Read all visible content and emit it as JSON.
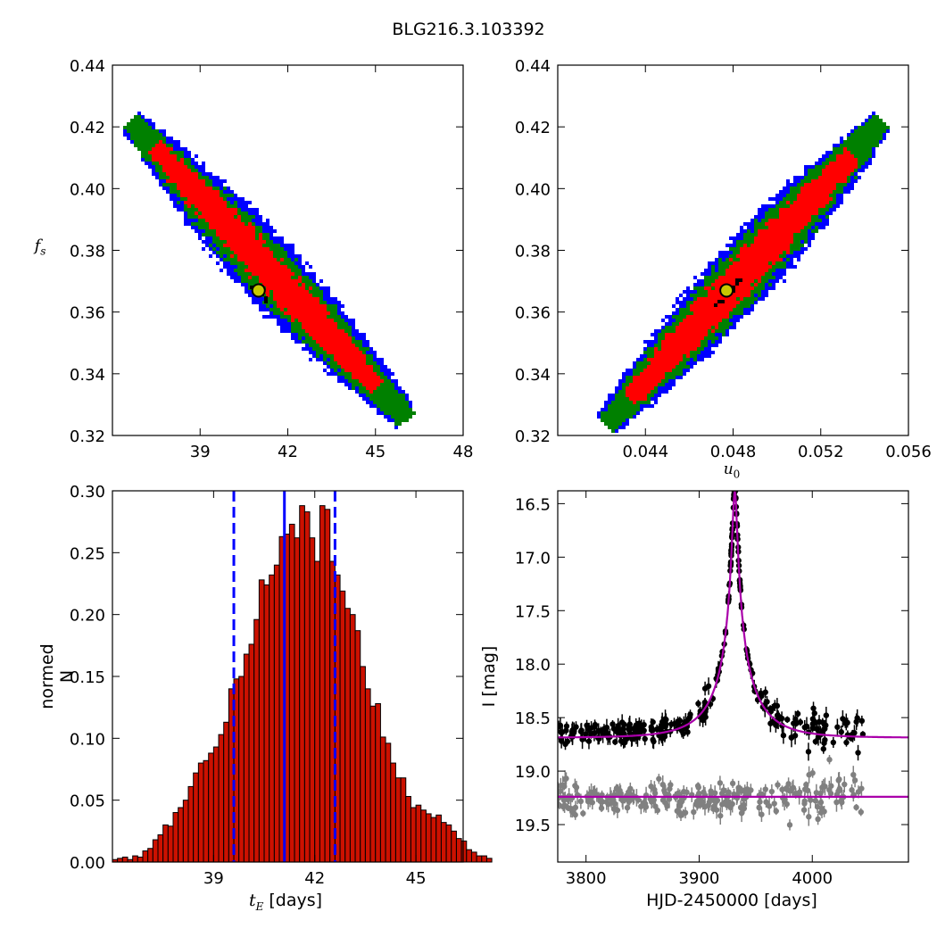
{
  "title": "BLG216.3.103392",
  "chart_data": [
    {
      "id": "panel-tE-fs",
      "type": "heatmap",
      "title": "",
      "xlabel": "",
      "ylabel": "f_s",
      "xlim": [
        36.0,
        48.0
      ],
      "ylim": [
        0.32,
        0.44
      ],
      "xticks": [
        39,
        42,
        45,
        48
      ],
      "yticks": [
        0.32,
        0.34,
        0.36,
        0.38,
        0.4,
        0.42,
        0.44
      ],
      "ridge": {
        "x_start": 36.7,
        "y_start": 0.421,
        "x_end": 46.0,
        "y_end": 0.326
      },
      "confidence_levels": [
        "red",
        "green",
        "blue"
      ],
      "best_fit": {
        "x": 41.0,
        "y": 0.367
      },
      "colors": {
        "inner": "#ff0000",
        "middle": "#008000",
        "outer": "#0000ff",
        "marker_fill": "#c8c800"
      }
    },
    {
      "id": "panel-u0-fs",
      "type": "heatmap",
      "title": "",
      "xlabel": "u_0",
      "ylabel": "",
      "xlim": [
        0.04,
        0.056
      ],
      "ylim": [
        0.32,
        0.44
      ],
      "xticks": [
        0.044,
        0.048,
        0.052,
        0.056
      ],
      "yticks": [
        0.32,
        0.34,
        0.36,
        0.38,
        0.4,
        0.42,
        0.44
      ],
      "ridge": {
        "x_start": 0.0423,
        "y_start": 0.324,
        "x_end": 0.0547,
        "y_end": 0.421
      },
      "confidence_levels": [
        "red",
        "green",
        "blue"
      ],
      "best_fit": {
        "x": 0.0477,
        "y": 0.367
      },
      "colors": {
        "inner": "#ff0000",
        "middle": "#008000",
        "outer": "#0000ff",
        "marker_fill": "#c8c800"
      }
    },
    {
      "id": "panel-tE-hist",
      "type": "bar",
      "title": "",
      "xlabel_symbol": "t_E",
      "xlabel_unit": "[days]",
      "ylabel": "normed N",
      "xlim": [
        36.0,
        46.4
      ],
      "ylim": [
        0.0,
        0.3
      ],
      "xticks": [
        39,
        42,
        45
      ],
      "yticks": [
        0.0,
        0.05,
        0.1,
        0.15,
        0.2,
        0.25,
        0.3
      ],
      "bin_start": 36.0,
      "bin_width": 0.15,
      "values": [
        0.002,
        0.003,
        0.004,
        0.002,
        0.005,
        0.004,
        0.009,
        0.011,
        0.018,
        0.022,
        0.03,
        0.029,
        0.04,
        0.044,
        0.05,
        0.061,
        0.072,
        0.08,
        0.082,
        0.088,
        0.093,
        0.103,
        0.113,
        0.14,
        0.148,
        0.15,
        0.168,
        0.176,
        0.196,
        0.228,
        0.224,
        0.232,
        0.24,
        0.263,
        0.265,
        0.273,
        0.262,
        0.288,
        0.283,
        0.262,
        0.243,
        0.288,
        0.285,
        0.243,
        0.232,
        0.219,
        0.205,
        0.2,
        0.187,
        0.158,
        0.14,
        0.126,
        0.128,
        0.101,
        0.096,
        0.08,
        0.068,
        0.068,
        0.053,
        0.044,
        0.046,
        0.042,
        0.039,
        0.036,
        0.038,
        0.032,
        0.03,
        0.025,
        0.019,
        0.017,
        0.01,
        0.008,
        0.005,
        0.005,
        0.003
      ],
      "median": 41.1,
      "lower": 39.6,
      "upper": 42.6,
      "colors": {
        "bar": "#cc1100",
        "lines": "#0000ff"
      }
    },
    {
      "id": "panel-lightcurve",
      "type": "scatter",
      "title": "",
      "xlabel": "HJD-2450000 [days]",
      "ylabel": "I [mag]",
      "xlim": [
        3775,
        4085
      ],
      "ylim": [
        19.85,
        16.38
      ],
      "xticks": [
        3800,
        3900,
        4000
      ],
      "yticks": [
        16.5,
        17.0,
        17.5,
        18.0,
        18.5,
        19.0,
        19.5
      ],
      "model": {
        "t0": 3931.5,
        "tE": 41.1,
        "u0": 0.0477,
        "fs": 0.367,
        "I_base": 18.688,
        "residual_offset": 19.24
      },
      "data_range": [
        3775,
        4045
      ],
      "colors": {
        "data": "#000000",
        "residuals": "#808080",
        "model": "#aa00aa"
      }
    }
  ]
}
